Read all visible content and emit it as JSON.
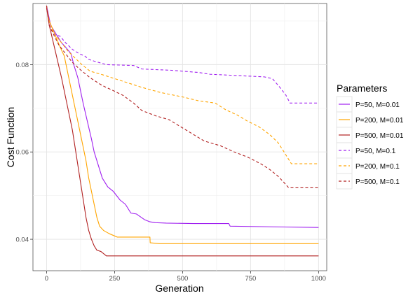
{
  "chart_data": {
    "type": "line",
    "title": "",
    "xlabel": "Generation",
    "ylabel": "Cost Function",
    "xlim": [
      -50,
      1030
    ],
    "ylim": [
      0.0328,
      0.094
    ],
    "x_ticks": [
      0,
      250,
      500,
      750,
      1000
    ],
    "y_ticks": [
      0.04,
      0.06,
      0.08
    ],
    "x_tick_labels": [
      "0",
      "250",
      "500",
      "750",
      "1000"
    ],
    "y_tick_labels": [
      "0.04",
      "0.06",
      "0.08"
    ],
    "grid": true,
    "legend": {
      "title": "Parameters",
      "position": "right"
    },
    "series": [
      {
        "name": "P=50, M=0.01",
        "color": "#a020f0",
        "dash": "solid",
        "points": [
          [
            0,
            0.0935
          ],
          [
            15,
            0.089
          ],
          [
            35,
            0.087
          ],
          [
            55,
            0.085
          ],
          [
            70,
            0.084
          ],
          [
            90,
            0.0825
          ],
          [
            100,
            0.08
          ],
          [
            115,
            0.077
          ],
          [
            125,
            0.074
          ],
          [
            135,
            0.071
          ],
          [
            150,
            0.067
          ],
          [
            165,
            0.063
          ],
          [
            175,
            0.06
          ],
          [
            190,
            0.057
          ],
          [
            205,
            0.054
          ],
          [
            225,
            0.052
          ],
          [
            245,
            0.051
          ],
          [
            270,
            0.049
          ],
          [
            290,
            0.048
          ],
          [
            310,
            0.046
          ],
          [
            330,
            0.0458
          ],
          [
            360,
            0.0445
          ],
          [
            380,
            0.044
          ],
          [
            400,
            0.0438
          ],
          [
            440,
            0.0437
          ],
          [
            540,
            0.0436
          ],
          [
            670,
            0.0436
          ],
          [
            675,
            0.043
          ],
          [
            1000,
            0.0427
          ]
        ]
      },
      {
        "name": "P=200, M=0.01",
        "color": "#ffa500",
        "dash": "solid",
        "points": [
          [
            0,
            0.093
          ],
          [
            10,
            0.09
          ],
          [
            30,
            0.087
          ],
          [
            50,
            0.084
          ],
          [
            65,
            0.082
          ],
          [
            75,
            0.079
          ],
          [
            85,
            0.076
          ],
          [
            95,
            0.073
          ],
          [
            105,
            0.07
          ],
          [
            115,
            0.067
          ],
          [
            125,
            0.064
          ],
          [
            135,
            0.061
          ],
          [
            145,
            0.058
          ],
          [
            155,
            0.054
          ],
          [
            165,
            0.051
          ],
          [
            175,
            0.048
          ],
          [
            185,
            0.045
          ],
          [
            195,
            0.043
          ],
          [
            210,
            0.042
          ],
          [
            230,
            0.0413
          ],
          [
            260,
            0.0405
          ],
          [
            300,
            0.0405
          ],
          [
            380,
            0.0405
          ],
          [
            381,
            0.0392
          ],
          [
            415,
            0.039
          ],
          [
            1000,
            0.039
          ]
        ]
      },
      {
        "name": "P=500, M=0.01",
        "color": "#b22222",
        "dash": "solid",
        "points": [
          [
            0,
            0.093
          ],
          [
            10,
            0.089
          ],
          [
            25,
            0.085
          ],
          [
            40,
            0.081
          ],
          [
            55,
            0.077
          ],
          [
            65,
            0.074
          ],
          [
            75,
            0.071
          ],
          [
            85,
            0.068
          ],
          [
            95,
            0.065
          ],
          [
            105,
            0.061
          ],
          [
            115,
            0.057
          ],
          [
            125,
            0.053
          ],
          [
            135,
            0.049
          ],
          [
            145,
            0.045
          ],
          [
            155,
            0.042
          ],
          [
            165,
            0.04
          ],
          [
            175,
            0.0385
          ],
          [
            185,
            0.0375
          ],
          [
            200,
            0.0372
          ],
          [
            220,
            0.0362
          ],
          [
            1000,
            0.0362
          ]
        ]
      },
      {
        "name": "P=50, M=0.1",
        "color": "#a020f0",
        "dash": "dashed",
        "points": [
          [
            0,
            0.0935
          ],
          [
            10,
            0.089
          ],
          [
            25,
            0.087
          ],
          [
            50,
            0.0865
          ],
          [
            70,
            0.085
          ],
          [
            95,
            0.0835
          ],
          [
            120,
            0.0825
          ],
          [
            140,
            0.082
          ],
          [
            155,
            0.0812
          ],
          [
            175,
            0.0808
          ],
          [
            220,
            0.08
          ],
          [
            320,
            0.0798
          ],
          [
            350,
            0.079
          ],
          [
            460,
            0.0787
          ],
          [
            560,
            0.0782
          ],
          [
            600,
            0.0778
          ],
          [
            700,
            0.0775
          ],
          [
            800,
            0.0772
          ],
          [
            830,
            0.0768
          ],
          [
            855,
            0.075
          ],
          [
            880,
            0.073
          ],
          [
            895,
            0.0712
          ],
          [
            1000,
            0.0712
          ]
        ]
      },
      {
        "name": "P=200, M=0.1",
        "color": "#ffa500",
        "dash": "dashed",
        "points": [
          [
            0,
            0.0935
          ],
          [
            10,
            0.089
          ],
          [
            30,
            0.087
          ],
          [
            55,
            0.085
          ],
          [
            80,
            0.083
          ],
          [
            105,
            0.0815
          ],
          [
            130,
            0.08
          ],
          [
            160,
            0.0785
          ],
          [
            200,
            0.0778
          ],
          [
            250,
            0.0768
          ],
          [
            290,
            0.076
          ],
          [
            350,
            0.0748
          ],
          [
            420,
            0.0736
          ],
          [
            500,
            0.0726
          ],
          [
            560,
            0.0717
          ],
          [
            620,
            0.0712
          ],
          [
            660,
            0.0696
          ],
          [
            700,
            0.0685
          ],
          [
            740,
            0.067
          ],
          [
            780,
            0.0658
          ],
          [
            820,
            0.064
          ],
          [
            850,
            0.0622
          ],
          [
            870,
            0.0603
          ],
          [
            885,
            0.0588
          ],
          [
            900,
            0.0573
          ],
          [
            1000,
            0.0573
          ]
        ]
      },
      {
        "name": "P=500, M=0.1",
        "color": "#b22222",
        "dash": "dashed",
        "points": [
          [
            0,
            0.0935
          ],
          [
            10,
            0.089
          ],
          [
            25,
            0.087
          ],
          [
            45,
            0.0845
          ],
          [
            70,
            0.0825
          ],
          [
            95,
            0.0805
          ],
          [
            125,
            0.0788
          ],
          [
            160,
            0.077
          ],
          [
            205,
            0.0752
          ],
          [
            240,
            0.0742
          ],
          [
            280,
            0.073
          ],
          [
            320,
            0.0712
          ],
          [
            350,
            0.0695
          ],
          [
            400,
            0.0683
          ],
          [
            450,
            0.0674
          ],
          [
            500,
            0.0655
          ],
          [
            540,
            0.064
          ],
          [
            580,
            0.0625
          ],
          [
            640,
            0.0614
          ],
          [
            690,
            0.06
          ],
          [
            740,
            0.0588
          ],
          [
            790,
            0.0572
          ],
          [
            820,
            0.056
          ],
          [
            850,
            0.0545
          ],
          [
            870,
            0.0532
          ],
          [
            890,
            0.0518
          ],
          [
            1000,
            0.0518
          ]
        ]
      }
    ]
  }
}
